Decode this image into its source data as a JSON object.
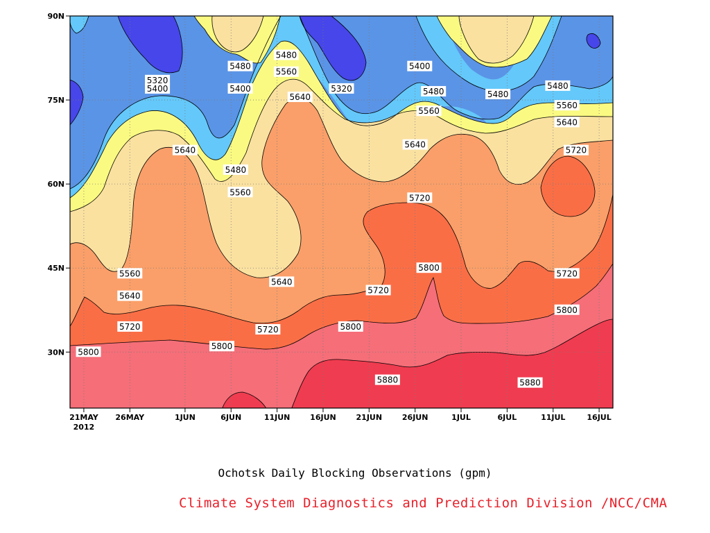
{
  "chart_data": {
    "type": "heatmap",
    "subtype": "filled-contour time-latitude section",
    "title": "Ochotsk Daily Blocking Observations (gpm)",
    "credit": "Climate System Diagnostics and Prediction Division /NCC/CMA",
    "xlabel": "",
    "ylabel": "",
    "x_tick_labels": [
      "21MAY",
      "26MAY",
      "1JUN",
      "6JUN",
      "11JUN",
      "16JUN",
      "21JUN",
      "26JUN",
      "1JUL",
      "6JUL",
      "11JUL",
      "16JUL"
    ],
    "x_tick_year": "2012",
    "x_day_index_of_ticks": [
      0,
      5,
      11,
      16,
      21,
      26,
      31,
      36,
      41,
      46,
      51,
      56
    ],
    "x_range_days": [
      -1.5,
      57.5
    ],
    "y_tick_labels": [
      "30N",
      "45N",
      "60N",
      "75N",
      "90N"
    ],
    "y_tick_values": [
      30,
      45,
      60,
      75,
      90
    ],
    "ylim": [
      20,
      90
    ],
    "contour_levels": [
      5320,
      5400,
      5480,
      5560,
      5640,
      5720,
      5800,
      5880
    ],
    "fill_colors": [
      "#4646ea",
      "#5a94e6",
      "#64c8fa",
      "#fafa82",
      "#fae1a0",
      "#fa9f69",
      "#fa6e46",
      "#f56e78",
      "#f03c50"
    ],
    "grid": "dotted",
    "contour_labels": [
      {
        "text": "5320",
        "day": 8,
        "lat": 78.5
      },
      {
        "text": "5400",
        "day": 8,
        "lat": 77
      },
      {
        "text": "5480",
        "day": 17,
        "lat": 81
      },
      {
        "text": "5400",
        "day": 17,
        "lat": 77
      },
      {
        "text": "5480",
        "day": 22,
        "lat": 83
      },
      {
        "text": "5560",
        "day": 22,
        "lat": 80
      },
      {
        "text": "5640",
        "day": 23.5,
        "lat": 75.5
      },
      {
        "text": "5320",
        "day": 28,
        "lat": 77
      },
      {
        "text": "5400",
        "day": 36.5,
        "lat": 81
      },
      {
        "text": "5480",
        "day": 38,
        "lat": 76.5
      },
      {
        "text": "5560",
        "day": 37.5,
        "lat": 73
      },
      {
        "text": "5640",
        "day": 36,
        "lat": 67
      },
      {
        "text": "5480",
        "day": 45,
        "lat": 76
      },
      {
        "text": "5480",
        "day": 51.5,
        "lat": 77.5
      },
      {
        "text": "5560",
        "day": 52.5,
        "lat": 74
      },
      {
        "text": "5640",
        "day": 52.5,
        "lat": 71
      },
      {
        "text": "5720",
        "day": 53.5,
        "lat": 66
      },
      {
        "text": "5640",
        "day": 11,
        "lat": 66
      },
      {
        "text": "5480",
        "day": 16.5,
        "lat": 62.5
      },
      {
        "text": "5560",
        "day": 17,
        "lat": 58.5
      },
      {
        "text": "5560",
        "day": 5,
        "lat": 44
      },
      {
        "text": "5640",
        "day": 5,
        "lat": 40
      },
      {
        "text": "5720",
        "day": 5,
        "lat": 34.5
      },
      {
        "text": "5640",
        "day": 21.5,
        "lat": 42.5
      },
      {
        "text": "5720",
        "day": 20,
        "lat": 34
      },
      {
        "text": "5800",
        "day": 0.5,
        "lat": 30
      },
      {
        "text": "5800",
        "day": 15,
        "lat": 31
      },
      {
        "text": "5720",
        "day": 32,
        "lat": 41
      },
      {
        "text": "5800",
        "day": 29,
        "lat": 34.5
      },
      {
        "text": "5720",
        "day": 36.5,
        "lat": 57.5
      },
      {
        "text": "5800",
        "day": 37.5,
        "lat": 45
      },
      {
        "text": "5720",
        "day": 52.5,
        "lat": 44
      },
      {
        "text": "5800",
        "day": 52.5,
        "lat": 37.5
      },
      {
        "text": "5880",
        "day": 33,
        "lat": 25
      },
      {
        "text": "5880",
        "day": 48.5,
        "lat": 24.5
      }
    ]
  }
}
